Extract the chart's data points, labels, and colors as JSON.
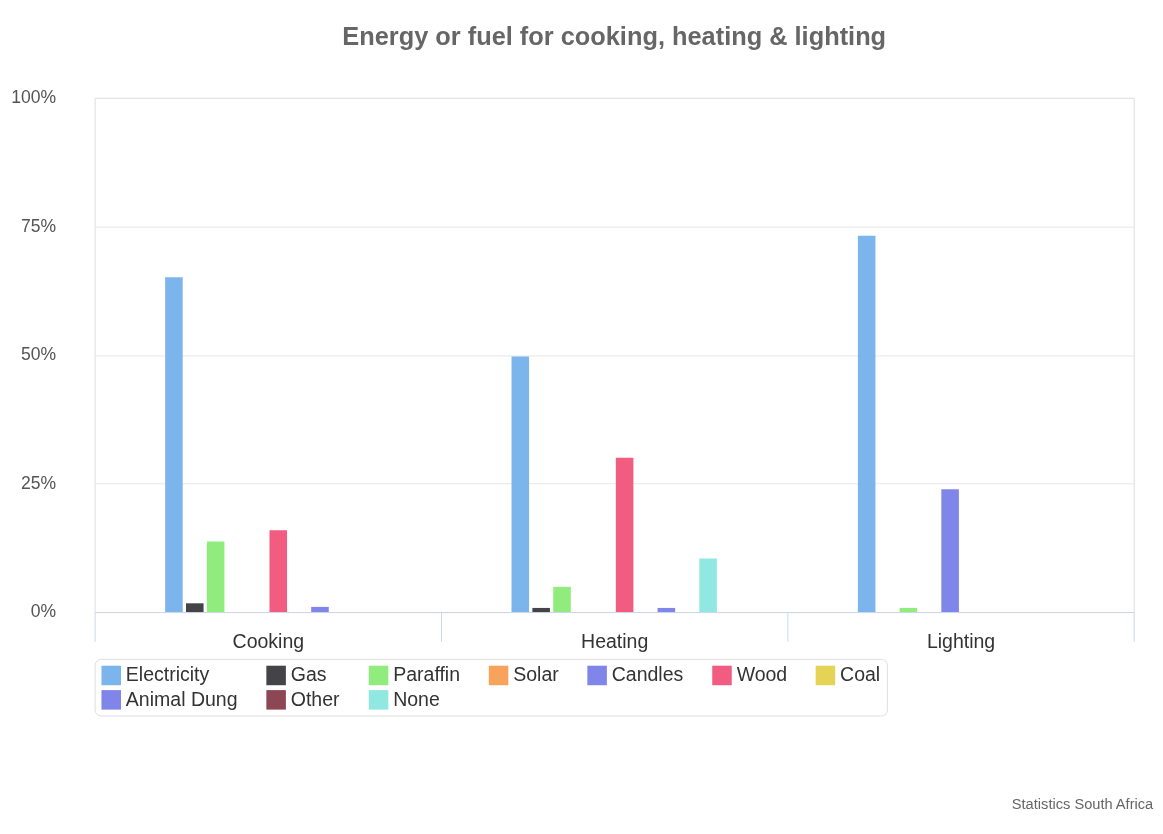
{
  "chart_data": {
    "type": "bar",
    "title": "Energy or fuel for cooking, heating & lighting",
    "categories": [
      "Cooking",
      "Heating",
      "Lighting"
    ],
    "series": [
      {
        "name": "Electricity",
        "color": "#7cb5ec",
        "values": [
          65.1,
          49.7,
          73.2
        ]
      },
      {
        "name": "Gas",
        "color": "#434348",
        "values": [
          1.7,
          0.8,
          null
        ]
      },
      {
        "name": "Paraffin",
        "color": "#90ed7d",
        "values": [
          13.7,
          4.9,
          0.8
        ]
      },
      {
        "name": "Solar",
        "color": "#f7a35c",
        "values": [
          null,
          null,
          null
        ]
      },
      {
        "name": "Candles",
        "color": "#8085e9",
        "values": [
          null,
          null,
          23.9
        ]
      },
      {
        "name": "Wood",
        "color": "#f15c80",
        "values": [
          15.9,
          30.0,
          null
        ]
      },
      {
        "name": "Coal",
        "color": "#e4d354",
        "values": [
          null,
          null,
          null
        ]
      },
      {
        "name": "Animal Dung",
        "color": "#8085e9",
        "values": [
          1.0,
          0.8,
          null
        ]
      },
      {
        "name": "Other",
        "color": "#8d4653",
        "values": [
          null,
          null,
          null
        ]
      },
      {
        "name": "None",
        "color": "#91e8e1",
        "values": [
          null,
          10.4,
          null
        ]
      }
    ],
    "ylim": [
      0,
      100
    ],
    "yticks": [
      {
        "value": 0,
        "label": "0%"
      },
      {
        "value": 25,
        "label": "25%"
      },
      {
        "value": 50,
        "label": "50%"
      },
      {
        "value": 75,
        "label": "75%"
      },
      {
        "value": 100,
        "label": "100%"
      }
    ],
    "grid": "y",
    "legend": "bottom",
    "annotations": [
      "Statistics South Africa"
    ]
  }
}
